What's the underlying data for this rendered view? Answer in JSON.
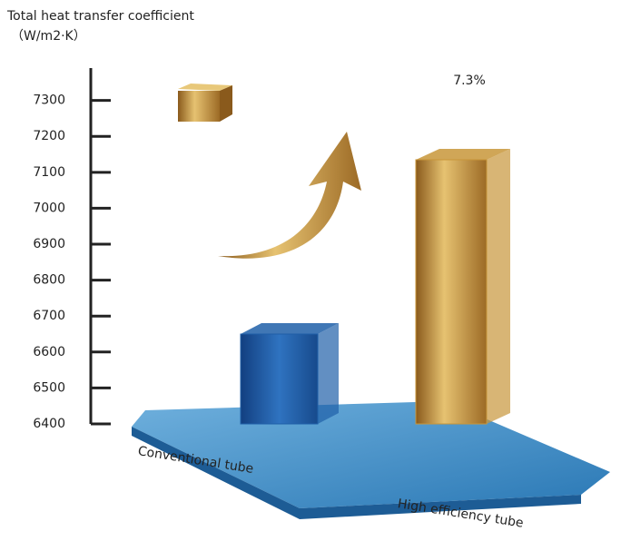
{
  "chart_data": {
    "type": "bar3d",
    "title": "Total heat transfer coefficient",
    "y_label": "（W/m2·K）",
    "categories": [
      "Conventional tube",
      "High efficiency tube"
    ],
    "values": [
      6650,
      7135
    ],
    "colors": [
      "#1f5fa8",
      "#c8963a"
    ],
    "annotation": "7.3%",
    "ylim": [
      6400,
      7390
    ],
    "yticks": [
      6400,
      6500,
      6600,
      6700,
      6800,
      6900,
      7000,
      7100,
      7200,
      7300
    ]
  }
}
